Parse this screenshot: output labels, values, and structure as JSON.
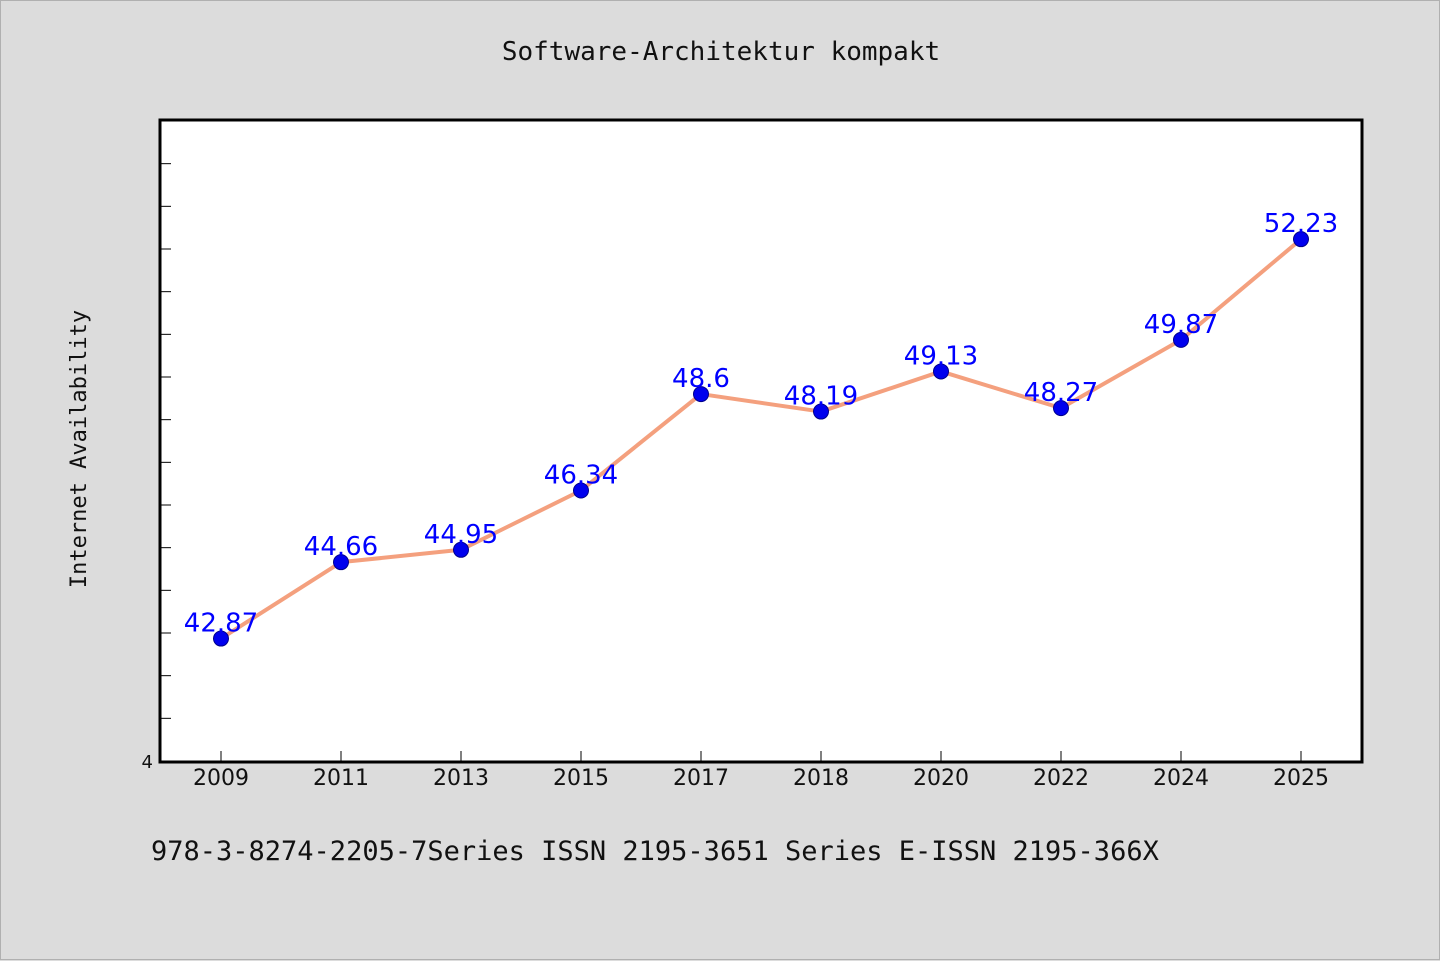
{
  "chart_data": {
    "type": "line",
    "title": "Software-Architektur kompakt",
    "xlabel": "",
    "ylabel": "Internet Availability",
    "categories": [
      "2009",
      "2011",
      "2013",
      "2015",
      "2017",
      "2018",
      "2020",
      "2022",
      "2024",
      "2025"
    ],
    "series": [
      {
        "values": [
          42.87,
          44.66,
          44.95,
          46.34,
          48.6,
          48.19,
          49.13,
          48.27,
          49.87,
          52.23
        ],
        "labels": [
          "42.87",
          "44.66",
          "44.95",
          "46.34",
          "48.6",
          "48.19",
          "49.13",
          "48.27",
          "49.87",
          "52.23"
        ],
        "line_color": "#f4a07e",
        "marker_color": "#0000ee"
      }
    ],
    "ylim": [
      40,
      55
    ],
    "y_min_tick_label": "4",
    "grid": false,
    "legend": "none"
  },
  "footer": {
    "text": "978-3-8274-2205-7Series ISSN 2195-3651 Series E-ISSN 2195-366X"
  }
}
